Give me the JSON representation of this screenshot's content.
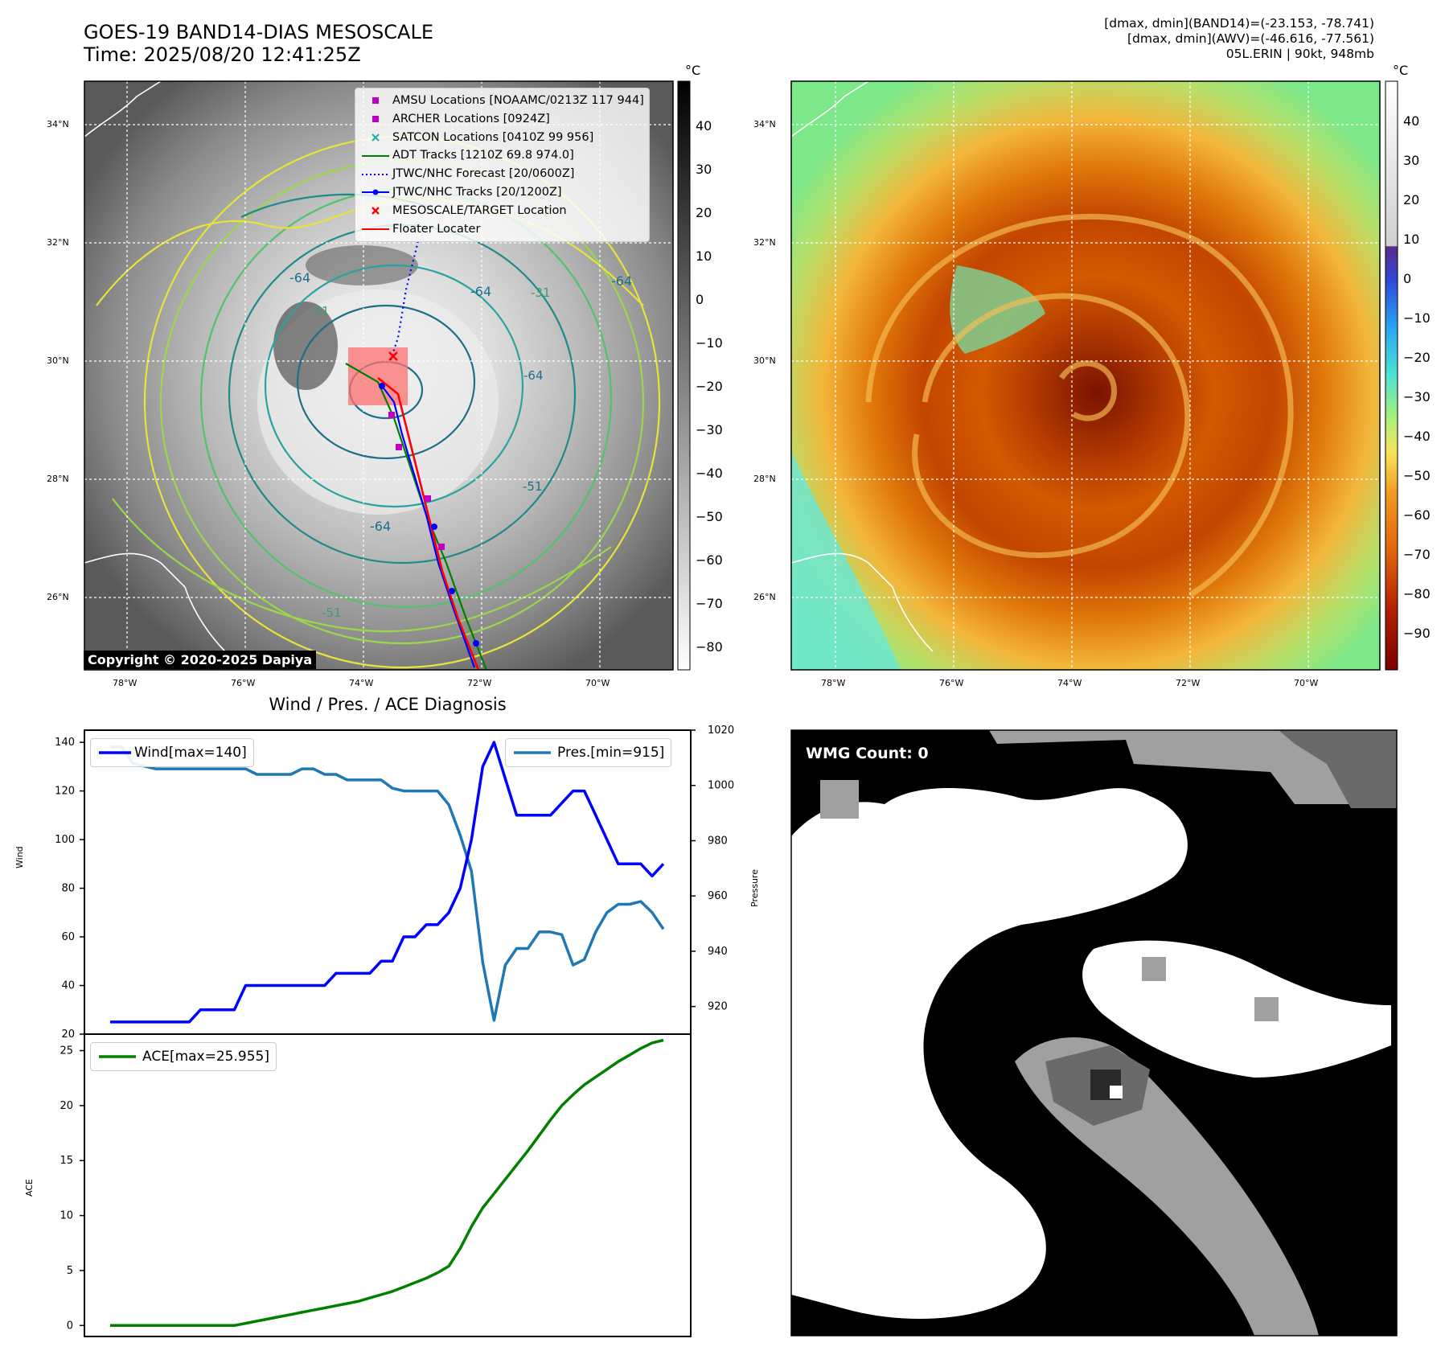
{
  "header": {
    "title_line1": "GOES-19 BAND14-DIAS MESOSCALE",
    "title_line2": "Time: 2025/08/20 12:41:25Z",
    "stats_line1": "[dmax, dmin](BAND14)=(-23.153, -78.741)",
    "stats_line2": "[dmax, dmin](AWV)=(-46.616, -77.561)",
    "stats_line3": "05L.ERIN | 90kt, 948mb"
  },
  "map": {
    "lat_labels": [
      "34°N",
      "32°N",
      "30°N",
      "28°N",
      "26°N"
    ],
    "lon_labels": [
      "78°W",
      "76°W",
      "74°W",
      "72°W",
      "70°W"
    ],
    "contour_labels": [
      "-64",
      "-64",
      "-64",
      "-64",
      "-31",
      "-31",
      "-51",
      "-64",
      "-51"
    ],
    "copyright": "Copyright © 2020-2025 Dapiya",
    "legend": [
      {
        "label": "AMSU Locations [NOAAMC/0213Z 117 944]",
        "symbol": "square",
        "color": "#c000c0"
      },
      {
        "label": "ARCHER Locations [0924Z]",
        "symbol": "square",
        "color": "#c000c0"
      },
      {
        "label": "SATCON Locations [0410Z 99 956]",
        "symbol": "x",
        "color": "#1ab0b0"
      },
      {
        "label": "ADT Tracks [1210Z 69.8 974.0]",
        "symbol": "line",
        "color": "#008000"
      },
      {
        "label": "JTWC/NHC Forecast [20/0600Z]",
        "symbol": "dotted",
        "color": "#0000ff"
      },
      {
        "label": "JTWC/NHC Tracks [20/1200Z]",
        "symbol": "line-dot",
        "color": "#0000ff"
      },
      {
        "label": "MESOSCALE/TARGET Location",
        "symbol": "x",
        "color": "#ff0000"
      },
      {
        "label": "Floater Locater",
        "symbol": "line",
        "color": "#ff0000"
      }
    ],
    "colorbar_unit": "°C",
    "colorbar_gray_ticks": [
      "40",
      "30",
      "20",
      "10",
      "0",
      "−10",
      "−20",
      "−30",
      "−40",
      "−50",
      "−60",
      "−70",
      "−80"
    ],
    "colorbar_color_ticks": [
      "40",
      "30",
      "20",
      "10",
      "0",
      "−10",
      "−20",
      "−30",
      "−40",
      "−50",
      "−60",
      "−70",
      "−80",
      "−90"
    ]
  },
  "wmg": {
    "label": "WMG Count: 0"
  },
  "colors": {
    "wind": "#0000ff",
    "pressure": "#1f77b4",
    "ace": "#008000",
    "floater": "#ff0000"
  },
  "chart_data": [
    {
      "type": "line",
      "title": "Wind / Pres. / ACE Diagnosis",
      "ylabel": "Wind",
      "y2label": "Pressure",
      "ylim": [
        20,
        145
      ],
      "y2lim": [
        910,
        1020
      ],
      "yticks": [
        20,
        40,
        60,
        80,
        100,
        120,
        140
      ],
      "y2ticks": [
        920,
        940,
        960,
        980,
        1000,
        1020
      ],
      "series": [
        {
          "name": "Wind[max=140]",
          "axis": "left",
          "values": [
            25,
            25,
            25,
            25,
            25,
            25,
            25,
            25,
            30,
            30,
            30,
            30,
            40,
            40,
            40,
            40,
            40,
            40,
            40,
            40,
            45,
            45,
            45,
            45,
            50,
            50,
            60,
            60,
            65,
            65,
            70,
            80,
            100,
            130,
            140,
            125,
            110,
            110,
            110,
            110,
            115,
            120,
            120,
            110,
            100,
            90,
            90,
            90,
            85,
            90
          ]
        },
        {
          "name": "Pres.[min=915]",
          "axis": "right",
          "values": [
            1014,
            1014,
            1008,
            1007,
            1006,
            1006,
            1006,
            1006,
            1006,
            1006,
            1006,
            1006,
            1006,
            1004,
            1004,
            1004,
            1004,
            1006,
            1006,
            1004,
            1004,
            1002,
            1002,
            1002,
            1002,
            999,
            998,
            998,
            998,
            998,
            993,
            982,
            969,
            936,
            915,
            935,
            941,
            941,
            947,
            947,
            946,
            935,
            937,
            947,
            954,
            957,
            957,
            958,
            954,
            948
          ]
        }
      ]
    },
    {
      "type": "line",
      "ylabel": "ACE",
      "ylim": [
        -1,
        26.5
      ],
      "yticks": [
        0,
        5,
        10,
        15,
        20,
        25
      ],
      "series": [
        {
          "name": "ACE[max=25.955]",
          "values": [
            0,
            0,
            0,
            0,
            0,
            0,
            0,
            0,
            0,
            0,
            0,
            0,
            0.2,
            0.4,
            0.6,
            0.8,
            1.0,
            1.2,
            1.4,
            1.6,
            1.8,
            2.0,
            2.2,
            2.5,
            2.8,
            3.1,
            3.5,
            3.9,
            4.3,
            4.8,
            5.4,
            7.0,
            9.0,
            10.7,
            12.0,
            13.3,
            14.6,
            15.9,
            17.3,
            18.7,
            20.0,
            21.0,
            21.9,
            22.6,
            23.3,
            24.0,
            24.6,
            25.2,
            25.7,
            25.955
          ]
        }
      ]
    }
  ]
}
